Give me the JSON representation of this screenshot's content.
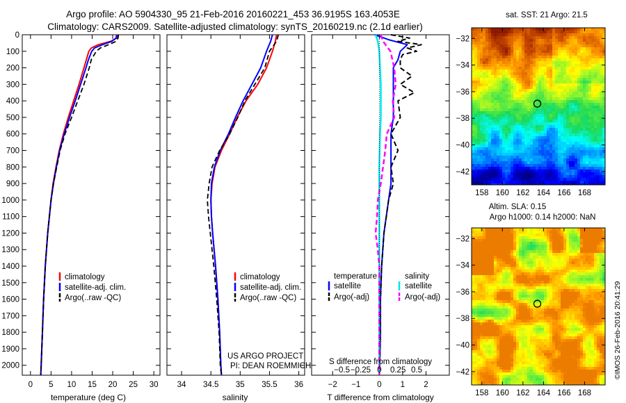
{
  "header": {
    "line1": "Argo profile: AO 5904330_95 21-Feb-2016 20160221_453 36.9195S 163.4053E",
    "line2": "Climatology: CARS2009. Satellite-adjusted climatology: synTS_20160219.nc (2.1d earlier)"
  },
  "colors": {
    "climatology": "#ff0000",
    "satellite": "#0000ff",
    "argo": "#000000",
    "sat_salinity": "#00e5ee",
    "argo_salinity": "#ff00ff"
  },
  "depth_axis": {
    "ticks": [
      0,
      100,
      200,
      300,
      400,
      500,
      600,
      700,
      800,
      900,
      1000,
      1100,
      1200,
      1300,
      1400,
      1500,
      1600,
      1700,
      1800,
      1900,
      2000
    ],
    "range": [
      0,
      2060
    ]
  },
  "panels": {
    "temperature": {
      "xlabel": "temperature (deg C)",
      "xticks": [
        0,
        5,
        10,
        15,
        20,
        25,
        30
      ],
      "xrange": [
        -2,
        31.5
      ],
      "legend": [
        "climatology",
        "satellite-adj. clim.",
        "Argo(..raw -QC)"
      ]
    },
    "salinity": {
      "xlabel": "salinity",
      "xticks": [
        34,
        34.5,
        35,
        35.5,
        36
      ],
      "xtick_labels": [
        "34",
        "34.5",
        "35",
        "35.5",
        "36"
      ],
      "xrange": [
        33.75,
        36.1
      ],
      "legend": [
        "climatology",
        "satellite-adj. clim.",
        "Argo(..raw -QC)"
      ],
      "credit1": "US ARGO PROJECT",
      "credit2": "PI: DEAN ROEMMICH"
    },
    "difference": {
      "xlabel_bottom": "T difference from climatology",
      "xlabel_top": "S difference from climatology",
      "t_ticks": [
        -2,
        -1,
        0,
        1,
        2
      ],
      "t_tick_labels": [
        "−2",
        "−1",
        "0",
        "1",
        "2"
      ],
      "s_ticks": [
        -0.5,
        -0.25,
        0,
        0.25,
        0.5
      ],
      "s_tick_labels": [
        "−0.5",
        "−0.25",
        "0",
        "0.25",
        "0.5"
      ],
      "trange": [
        -2.9,
        3.0
      ],
      "legend_temperature_title": "temperature",
      "legend_salinity_title": "salinity",
      "legend_items": {
        "t_sat": "satellite",
        "t_argo": "Argo(-adj)",
        "s_sat": "satellite",
        "s_argo": "Argo(-adj)"
      }
    }
  },
  "maps": {
    "sst": {
      "title": "sat. SST: 21  Argo: 21.5",
      "xticks": [
        158,
        160,
        162,
        164,
        166,
        168
      ],
      "yticks": [
        -32,
        -34,
        -36,
        -38,
        -40,
        -42
      ],
      "xrange": [
        157,
        170
      ],
      "yrange": [
        -31.2,
        -43
      ],
      "marker": {
        "lon": 163.4,
        "lat": -36.9
      }
    },
    "sla": {
      "title1": "Altim. SLA: 0.15",
      "title2": "Argo h1000: 0.14  h2000: NaN",
      "xticks": [
        158,
        160,
        162,
        164,
        166,
        168
      ],
      "yticks": [
        -32,
        -34,
        -36,
        -38,
        -40,
        -42
      ],
      "xrange": [
        157,
        170
      ],
      "yrange": [
        -31.2,
        -43
      ],
      "marker": {
        "lon": 163.4,
        "lat": -36.9
      }
    }
  },
  "stamp": "©IMOS 26-Feb-2016 20:41:29",
  "chart_data": [
    {
      "type": "line",
      "title": "Argo profile: AO 5904330_95 21-Feb-2016 20160221_453 36.9195S 163.4053E",
      "xlabel": "temperature (deg C)",
      "ylabel": "",
      "ylim": [
        0,
        2060
      ],
      "series": [
        {
          "name": "climatology",
          "depth": [
            0,
            20,
            40,
            60,
            80,
            100,
            150,
            200,
            300,
            400,
            500,
            600,
            700,
            800,
            900,
            1000,
            1200,
            1400,
            1600,
            1800,
            2000,
            2060
          ],
          "values": [
            21.2,
            21.0,
            19.5,
            16.5,
            14.8,
            14.2,
            13.6,
            13.0,
            11.8,
            10.5,
            9.2,
            8.0,
            7.0,
            6.2,
            5.5,
            5.0,
            4.2,
            3.6,
            3.2,
            2.9,
            2.6,
            2.5
          ]
        },
        {
          "name": "satellite-adj. clim.",
          "depth": [
            0,
            20,
            40,
            60,
            80,
            100,
            150,
            200,
            300,
            400,
            500,
            600,
            700,
            800,
            900,
            1000,
            1200,
            1400,
            1600,
            1800,
            2000,
            2060
          ],
          "values": [
            21.0,
            20.8,
            19.8,
            17.5,
            15.6,
            14.9,
            14.1,
            13.5,
            12.2,
            10.9,
            9.5,
            8.2,
            7.1,
            6.3,
            5.6,
            5.0,
            4.2,
            3.6,
            3.2,
            2.9,
            2.6,
            2.5
          ]
        },
        {
          "name": "Argo(..raw -QC)",
          "depth": [
            0,
            20,
            40,
            60,
            80,
            100,
            150,
            200,
            300,
            400,
            500,
            600,
            700,
            800,
            900,
            1000,
            1200,
            1400,
            1600,
            1800,
            2000,
            2060
          ],
          "values": [
            21.4,
            21.3,
            20.8,
            19.0,
            17.0,
            16.0,
            14.8,
            14.3,
            13.0,
            11.5,
            10.0,
            8.4,
            7.2,
            6.4,
            5.6,
            5.0,
            4.2,
            3.6,
            3.2,
            2.9,
            2.6,
            2.5
          ]
        }
      ]
    },
    {
      "type": "line",
      "xlabel": "salinity",
      "ylabel": "",
      "ylim": [
        0,
        2060
      ],
      "series": [
        {
          "name": "climatology",
          "depth": [
            0,
            40,
            100,
            200,
            300,
            400,
            500,
            600,
            700,
            800,
            900,
            1000,
            1100,
            1200,
            1400,
            1600,
            1800,
            2000,
            2060
          ],
          "values": [
            35.62,
            35.6,
            35.55,
            35.45,
            35.3,
            35.1,
            34.95,
            34.82,
            34.68,
            34.57,
            34.52,
            34.5,
            34.51,
            34.53,
            34.58,
            34.62,
            34.65,
            34.67,
            34.68
          ]
        },
        {
          "name": "satellite-adj. clim.",
          "depth": [
            0,
            40,
            100,
            200,
            300,
            400,
            500,
            600,
            700,
            800,
            900,
            1000,
            1100,
            1200,
            1400,
            1600,
            1800,
            2000,
            2060
          ],
          "values": [
            35.55,
            35.52,
            35.45,
            35.35,
            35.2,
            35.05,
            34.92,
            34.8,
            34.66,
            34.56,
            34.51,
            34.5,
            34.51,
            34.53,
            34.58,
            34.62,
            34.65,
            34.67,
            34.68
          ]
        },
        {
          "name": "Argo(..raw -QC)",
          "depth": [
            0,
            40,
            100,
            200,
            300,
            400,
            500,
            600,
            700,
            800,
            900,
            1000,
            1100,
            1200,
            1400,
            1600,
            1800,
            2000,
            2060
          ],
          "values": [
            35.65,
            35.62,
            35.5,
            35.42,
            35.25,
            35.08,
            34.96,
            34.82,
            34.65,
            34.52,
            34.47,
            34.44,
            34.46,
            34.49,
            34.55,
            34.6,
            34.64,
            34.66,
            34.68
          ]
        }
      ]
    },
    {
      "type": "line",
      "xlabel": "T difference from climatology",
      "ylabel": "",
      "ylim": [
        0,
        2060
      ],
      "series": [
        {
          "name": "satellite",
          "quantity": "temperature",
          "depth": [
            0,
            30,
            60,
            100,
            150,
            200,
            300,
            400,
            500,
            600,
            700,
            800,
            900,
            1000,
            1200,
            1400,
            1600,
            1800,
            2000,
            2060
          ],
          "values": [
            -0.2,
            0.4,
            1.2,
            0.9,
            0.8,
            0.6,
            0.6,
            0.6,
            0.6,
            0.5,
            0.5,
            0.5,
            0.5,
            0.4,
            0.2,
            0.1,
            0.05,
            0.05,
            0.02,
            0.0
          ]
        },
        {
          "name": "Argo(-adj)",
          "quantity": "temperature",
          "depth": [
            0,
            20,
            40,
            60,
            80,
            100,
            120,
            150,
            200,
            250,
            300,
            350,
            400,
            500,
            600,
            700,
            800,
            900,
            1000,
            1100,
            1200,
            1400,
            1600,
            1800,
            2000,
            2060
          ],
          "values": [
            0.5,
            1.3,
            0.8,
            1.8,
            1.2,
            1.6,
            1.0,
            0.9,
            0.9,
            1.4,
            0.9,
            1.5,
            0.8,
            0.9,
            0.5,
            0.8,
            0.5,
            0.6,
            0.4,
            0.3,
            0.2,
            0.1,
            0.05,
            0.05,
            0.02,
            0.0
          ]
        },
        {
          "name": "satellite",
          "quantity": "salinity",
          "depth": [
            0,
            40,
            100,
            200,
            300,
            400,
            500,
            600,
            800,
            1000,
            1200,
            1400,
            1600,
            1800,
            2000,
            2060
          ],
          "values": [
            -0.05,
            -0.02,
            0.0,
            0.01,
            0.02,
            0.02,
            0.02,
            0.01,
            0.0,
            0.0,
            0.0,
            0.0,
            0.0,
            0.0,
            0.0,
            0.0
          ]
        },
        {
          "name": "Argo(-adj)",
          "quantity": "salinity",
          "depth": [
            0,
            40,
            100,
            200,
            300,
            400,
            500,
            600,
            700,
            800,
            900,
            1000,
            1100,
            1200,
            1300,
            1400,
            1600,
            1800,
            2000,
            2060
          ],
          "values": [
            0.02,
            0.05,
            0.15,
            0.2,
            0.22,
            0.18,
            0.2,
            0.1,
            0.08,
            0.05,
            0.02,
            -0.02,
            -0.03,
            -0.05,
            -0.02,
            0.0,
            0.0,
            0.0,
            0.0,
            0.0
          ]
        }
      ]
    }
  ]
}
